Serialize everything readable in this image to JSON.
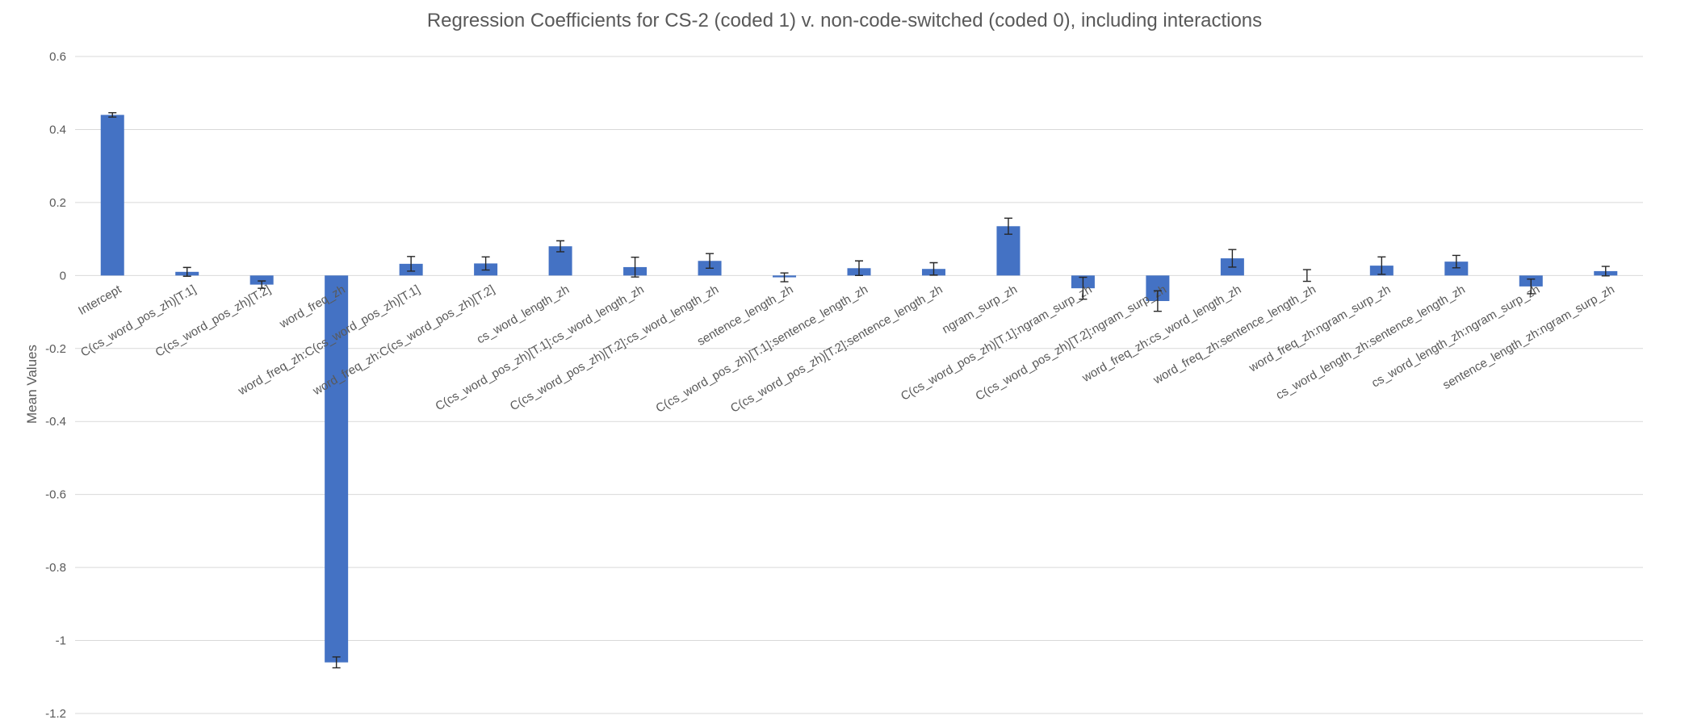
{
  "chart_data": {
    "type": "bar",
    "title": "Regression Coefficients for CS-2 (coded 1) v. non-code-switched (coded 0), including interactions",
    "xlabel": "",
    "ylabel": "Mean Values",
    "ylim": [
      -1.2,
      0.6
    ],
    "yticks": [
      0.6,
      0.4,
      0.2,
      0,
      -0.2,
      -0.4,
      -0.6,
      -0.8,
      -1,
      -1.2
    ],
    "ytick_labels": [
      "0.6",
      "0.4",
      "0.2",
      "0",
      "-0.2",
      "-0.4",
      "-0.6",
      "-0.8",
      "-1",
      "-1.2"
    ],
    "grid": true,
    "legend": "none",
    "bar_color": "#4472c4",
    "categories": [
      "Intercept",
      "C(cs_word_pos_zh)[T.1]",
      "C(cs_word_pos_zh)[T.2]",
      "word_freq_zh",
      "word_freq_zh:C(cs_word_pos_zh)[T.1]",
      "word_freq_zh:C(cs_word_pos_zh)[T.2]",
      "cs_word_length_zh",
      "C(cs_word_pos_zh)[T.1]:cs_word_length_zh",
      "C(cs_word_pos_zh)[T.2]:cs_word_length_zh",
      "sentence_length_zh",
      "C(cs_word_pos_zh)[T.1]:sentence_length_zh",
      "C(cs_word_pos_zh)[T.2]:sentence_length_zh",
      "ngram_surp_zh",
      "C(cs_word_pos_zh)[T.1]:ngram_surp_zh",
      "C(cs_word_pos_zh)[T.2]:ngram_surp_zh",
      "word_freq_zh:cs_word_length_zh",
      "word_freq_zh:sentence_length_zh",
      "word_freq_zh:ngram_surp_zh",
      "cs_word_length_zh:sentence_length_zh",
      "cs_word_length_zh:ngram_surp_zh",
      "sentence_length_zh:ngram_surp_zh"
    ],
    "values": [
      0.44,
      0.01,
      -0.025,
      -1.06,
      0.032,
      0.033,
      0.08,
      0.023,
      0.04,
      -0.005,
      0.02,
      0.018,
      0.135,
      -0.035,
      -0.07,
      0.047,
      0.0,
      0.027,
      0.038,
      -0.03,
      0.012
    ],
    "errors": [
      0.006,
      0.012,
      0.01,
      0.015,
      0.02,
      0.018,
      0.015,
      0.027,
      0.02,
      0.012,
      0.02,
      0.017,
      0.022,
      0.03,
      0.028,
      0.024,
      0.016,
      0.024,
      0.017,
      0.02,
      0.013
    ]
  }
}
